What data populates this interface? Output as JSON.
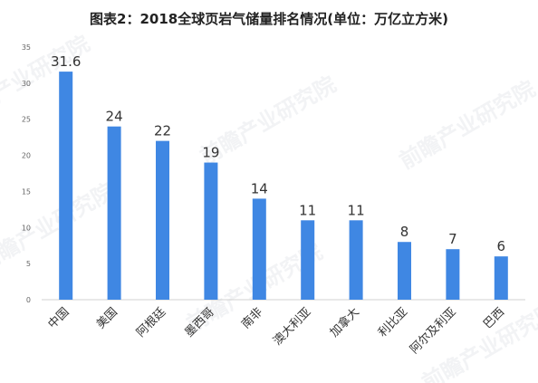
{
  "chart_data": {
    "type": "bar",
    "title": "图表2：2018全球页岩气储量排名情况(单位：万亿立方米)",
    "categories": [
      "中国",
      "美国",
      "阿根廷",
      "墨西哥",
      "南非",
      "澳大利亚",
      "加拿大",
      "利比亚",
      "阿尔及利亚",
      "巴西"
    ],
    "values": [
      31.6,
      24,
      22,
      19,
      14,
      11,
      11,
      8,
      7,
      6
    ],
    "data_labels": [
      "31.6",
      "24",
      "22",
      "19",
      "14",
      "11",
      "11",
      "8",
      "7",
      "6"
    ],
    "yticks": [
      0,
      5,
      10,
      15,
      20,
      25,
      30,
      35
    ],
    "ylim": [
      0,
      35
    ],
    "grid": false,
    "legend": "none",
    "bar_color": "#3f87e3"
  },
  "watermark": {
    "text": "前瞻产业研究院"
  }
}
